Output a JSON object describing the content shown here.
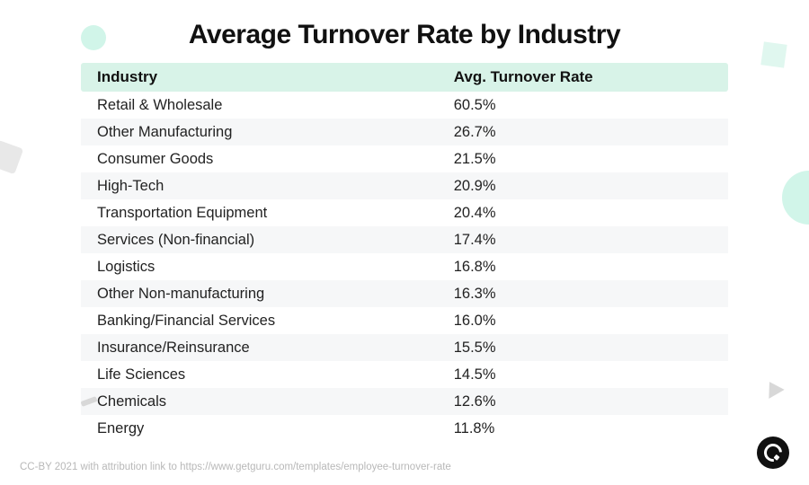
{
  "title": "Average Turnover Rate by Industry",
  "table": {
    "type": "table",
    "header_bg": "#d8f3e8",
    "row_alt_bg": "#f6f7f8",
    "text_color": "#222222",
    "header_font_weight": 700,
    "body_fontsize_pt": 12,
    "columns": [
      {
        "key": "industry",
        "label": "Industry",
        "width_pct": 58
      },
      {
        "key": "rate",
        "label": "Avg. Turnover Rate",
        "width_pct": 42
      }
    ],
    "rows": [
      {
        "industry": "Retail & Wholesale",
        "rate": "60.5%"
      },
      {
        "industry": "Other Manufacturing",
        "rate": "26.7%"
      },
      {
        "industry": "Consumer Goods",
        "rate": "21.5%"
      },
      {
        "industry": "High-Tech",
        "rate": "20.9%"
      },
      {
        "industry": "Transportation Equipment",
        "rate": "20.4%"
      },
      {
        "industry": "Services (Non-financial)",
        "rate": "17.4%"
      },
      {
        "industry": "Logistics",
        "rate": "16.8%"
      },
      {
        "industry": "Other Non-manufacturing",
        "rate": "16.3%"
      },
      {
        "industry": "Banking/Financial Services",
        "rate": "16.0%"
      },
      {
        "industry": "Insurance/Reinsurance",
        "rate": "15.5%"
      },
      {
        "industry": "Life Sciences",
        "rate": "14.5%"
      },
      {
        "industry": "Chemicals",
        "rate": "12.6%"
      },
      {
        "industry": "Energy",
        "rate": "11.8%"
      }
    ]
  },
  "attribution": "CC-BY 2021 with attribution link to https://www.getguru.com/templates/employee-turnover-rate",
  "colors": {
    "background": "#ffffff",
    "title": "#111111",
    "deco_mint": "#d1f5e9",
    "deco_gray": "#d8d8d8",
    "logo_bg": "#111111",
    "logo_fg": "#ffffff",
    "attribution": "#b8b8b8"
  },
  "decorations": [
    {
      "shape": "circle",
      "pos": "top-left",
      "color": "#d1f5e9"
    },
    {
      "shape": "square",
      "pos": "top-right",
      "color": "#e0f7ef"
    },
    {
      "shape": "circle",
      "pos": "right",
      "color": "#d1f5e9"
    },
    {
      "shape": "quad",
      "pos": "left",
      "color": "#e8e8e8"
    },
    {
      "shape": "dash",
      "pos": "bottom-left",
      "color": "#d8d8d8"
    },
    {
      "shape": "triangle",
      "pos": "bottom-right",
      "color": "#d8d8d8"
    }
  ]
}
